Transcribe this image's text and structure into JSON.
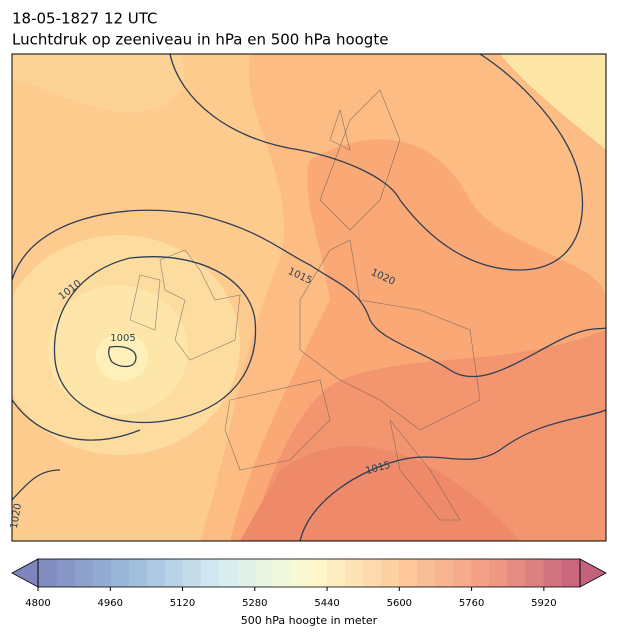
{
  "header": {
    "date": "18-05-1827 12 UTC",
    "title": "Luchtdruk op zeeniveau in hPa en 500 hPa hoogte"
  },
  "map": {
    "contour_labels": [
      1010,
      1005,
      1015,
      1020,
      1015,
      1020
    ]
  },
  "colorbar": {
    "label": "500 hPa hoogte in meter",
    "lim": [
      4800,
      6000
    ],
    "step": 40,
    "ticks": [
      4800,
      4960,
      5120,
      5280,
      5440,
      5600,
      5760,
      5920
    ],
    "colors": [
      "#5e68ad",
      "#84a9d0",
      "#cbe6ef",
      "#fdfbc4",
      "#fdbf85",
      "#f08566",
      "#b53b5c"
    ]
  }
}
